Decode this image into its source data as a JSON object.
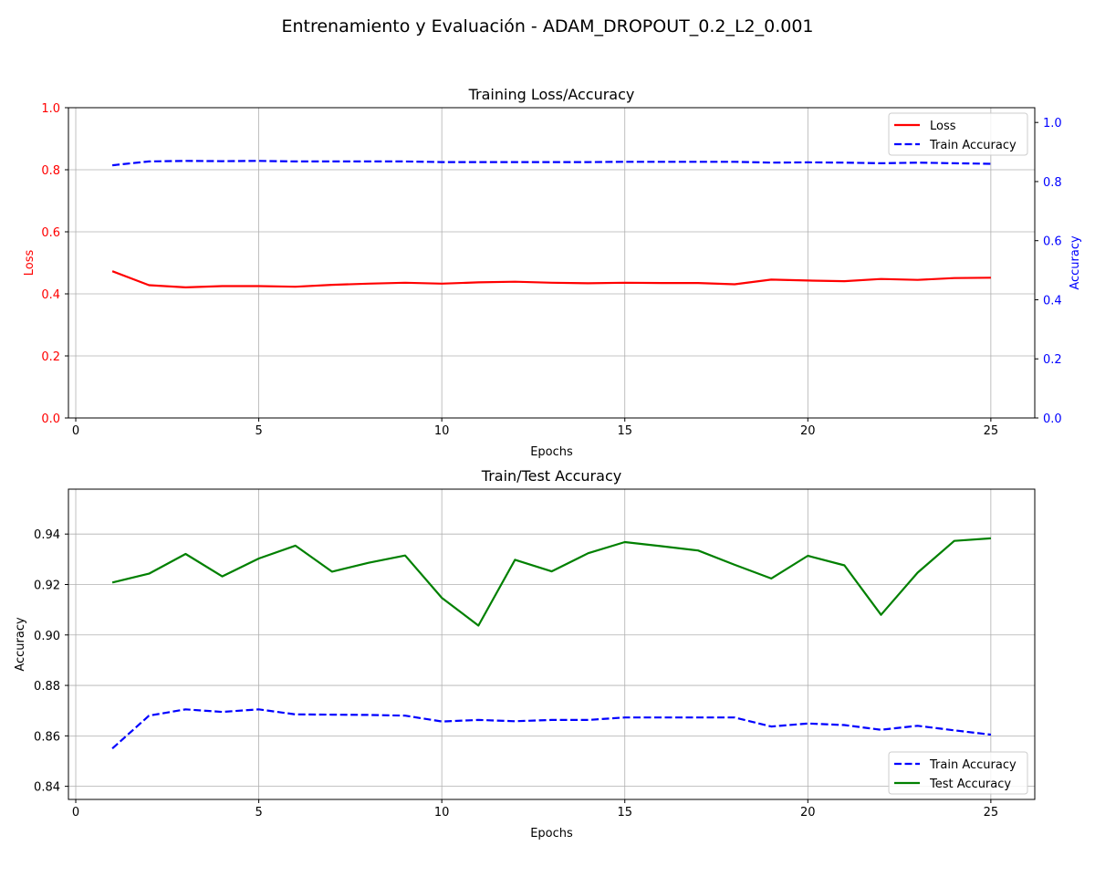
{
  "figure": {
    "suptitle": "Entrenamiento y Evaluación - ADAM_DROPOUT_0.2_L2_0.001"
  },
  "chart_data": [
    {
      "type": "line",
      "title": "Training Loss/Accuracy",
      "xlabel": "Epochs",
      "ylabel_left": "Loss",
      "ylabel_right": "Accuracy",
      "xlim": [
        -0.2,
        26.2
      ],
      "ylim_left": [
        0,
        1.0
      ],
      "ylim_right": [
        0,
        1.05
      ],
      "xticks": [
        0,
        5,
        10,
        15,
        20,
        25
      ],
      "xtick_labels": [
        "0",
        "5",
        "10",
        "15",
        "20",
        "25"
      ],
      "yticks_left": [
        0.0,
        0.2,
        0.4,
        0.6,
        0.8,
        1.0
      ],
      "ytick_labels_left": [
        "0.0",
        "0.2",
        "0.4",
        "0.6",
        "0.8",
        "1.0"
      ],
      "yticks_right": [
        0.0,
        0.2,
        0.4,
        0.6,
        0.8,
        1.0
      ],
      "ytick_labels_right": [
        "0.0",
        "0.2",
        "0.4",
        "0.6",
        "0.8",
        "1.0"
      ],
      "grid": true,
      "legend_position": "upper right",
      "x": [
        1,
        2,
        3,
        4,
        5,
        6,
        7,
        8,
        9,
        10,
        11,
        12,
        13,
        14,
        15,
        16,
        17,
        18,
        19,
        20,
        21,
        22,
        23,
        24,
        25
      ],
      "series": [
        {
          "name": "Loss",
          "axis": "left",
          "color": "#ff0000",
          "dash": "solid",
          "values": [
            0.473,
            0.428,
            0.421,
            0.425,
            0.425,
            0.423,
            0.429,
            0.433,
            0.436,
            0.433,
            0.437,
            0.439,
            0.436,
            0.434,
            0.436,
            0.435,
            0.435,
            0.431,
            0.446,
            0.443,
            0.441,
            0.448,
            0.445,
            0.451,
            0.452
          ]
        },
        {
          "name": "Train Accuracy",
          "axis": "right",
          "color": "#0000ff",
          "dash": "dashed",
          "values": [
            0.855,
            0.868,
            0.87,
            0.869,
            0.87,
            0.868,
            0.868,
            0.868,
            0.868,
            0.866,
            0.866,
            0.866,
            0.866,
            0.866,
            0.867,
            0.867,
            0.867,
            0.867,
            0.864,
            0.865,
            0.864,
            0.862,
            0.864,
            0.862,
            0.86
          ]
        }
      ]
    },
    {
      "type": "line",
      "title": "Train/Test Accuracy",
      "xlabel": "Epochs",
      "ylabel": "Accuracy",
      "xlim": [
        -0.2,
        26.2
      ],
      "ylim": [
        0.8348,
        0.9578
      ],
      "xticks": [
        0,
        5,
        10,
        15,
        20,
        25
      ],
      "xtick_labels": [
        "0",
        "5",
        "10",
        "15",
        "20",
        "25"
      ],
      "yticks": [
        0.84,
        0.86,
        0.88,
        0.9,
        0.92,
        0.94
      ],
      "ytick_labels": [
        "0.84",
        "0.86",
        "0.88",
        "0.90",
        "0.92",
        "0.94"
      ],
      "grid": true,
      "legend_position": "lower right",
      "x": [
        1,
        2,
        3,
        4,
        5,
        6,
        7,
        8,
        9,
        10,
        11,
        12,
        13,
        14,
        15,
        16,
        17,
        18,
        19,
        20,
        21,
        22,
        23,
        24,
        25
      ],
      "series": [
        {
          "name": "Train Accuracy",
          "color": "#0000ff",
          "dash": "dashed",
          "values": [
            0.855,
            0.868,
            0.8705,
            0.8695,
            0.8705,
            0.8685,
            0.8684,
            0.8683,
            0.868,
            0.8657,
            0.8663,
            0.8658,
            0.8663,
            0.8663,
            0.8673,
            0.8673,
            0.8673,
            0.8673,
            0.8637,
            0.8649,
            0.8643,
            0.8624,
            0.864,
            0.8622,
            0.8605
          ]
        },
        {
          "name": "Test Accuracy",
          "color": "#008000",
          "dash": "solid",
          "values": [
            0.9208,
            0.9243,
            0.9321,
            0.9232,
            0.9303,
            0.9354,
            0.9251,
            0.9286,
            0.9315,
            0.9147,
            0.9037,
            0.9298,
            0.9252,
            0.9324,
            0.9368,
            0.9352,
            0.9335,
            0.9278,
            0.9224,
            0.9314,
            0.9276,
            0.908,
            0.9247,
            0.9373,
            0.9383
          ]
        }
      ]
    }
  ]
}
